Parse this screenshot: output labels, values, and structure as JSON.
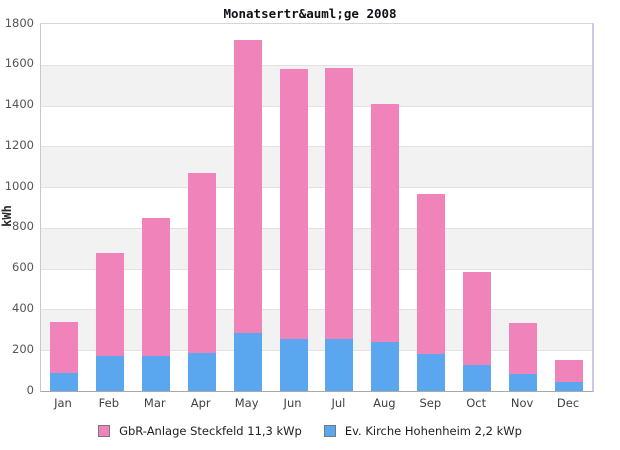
{
  "chart_data": {
    "type": "bar",
    "stacked": true,
    "title": "Monatsertr&auml;ge 2008",
    "ylabel": "kWh",
    "xlabel": "",
    "ylim": [
      0,
      1800
    ],
    "ytick_step": 200,
    "ytick_labels": [
      "0",
      "200",
      "400",
      "600",
      "800",
      "1000",
      "1200",
      "1400",
      "1600",
      "1800"
    ],
    "grid": "alternating-horizontal-bands",
    "legend_position": "bottom",
    "categories": [
      "Jan",
      "Feb",
      "Mar",
      "Apr",
      "May",
      "Jun",
      "Jul",
      "Aug",
      "Sep",
      "Oct",
      "Nov",
      "Dec"
    ],
    "series": [
      {
        "name": "GbR-Anlage Steckfeld 11,3 kWp",
        "color": "#f083ba",
        "stack_position": "top",
        "values": [
          250,
          505,
          680,
          885,
          1435,
          1325,
          1330,
          1170,
          785,
          455,
          250,
          105
        ]
      },
      {
        "name": "Ev. Kirche Hohenheim 2,2 kWp",
        "color": "#5ba7ef",
        "stack_position": "bottom",
        "values": [
          90,
          170,
          170,
          185,
          285,
          255,
          255,
          240,
          180,
          130,
          85,
          45
        ]
      }
    ],
    "stack_totals": [
      340,
      675,
      850,
      1070,
      1720,
      1580,
      1585,
      1410,
      965,
      585,
      335,
      150
    ]
  },
  "colors": {
    "band_gray": "#f2f2f2",
    "gridline": "#e2e2e2",
    "plot_border": "#c9c9c9",
    "plot_border_right": "#c9c9e6",
    "axis_bottom": "#a9a9a9"
  }
}
